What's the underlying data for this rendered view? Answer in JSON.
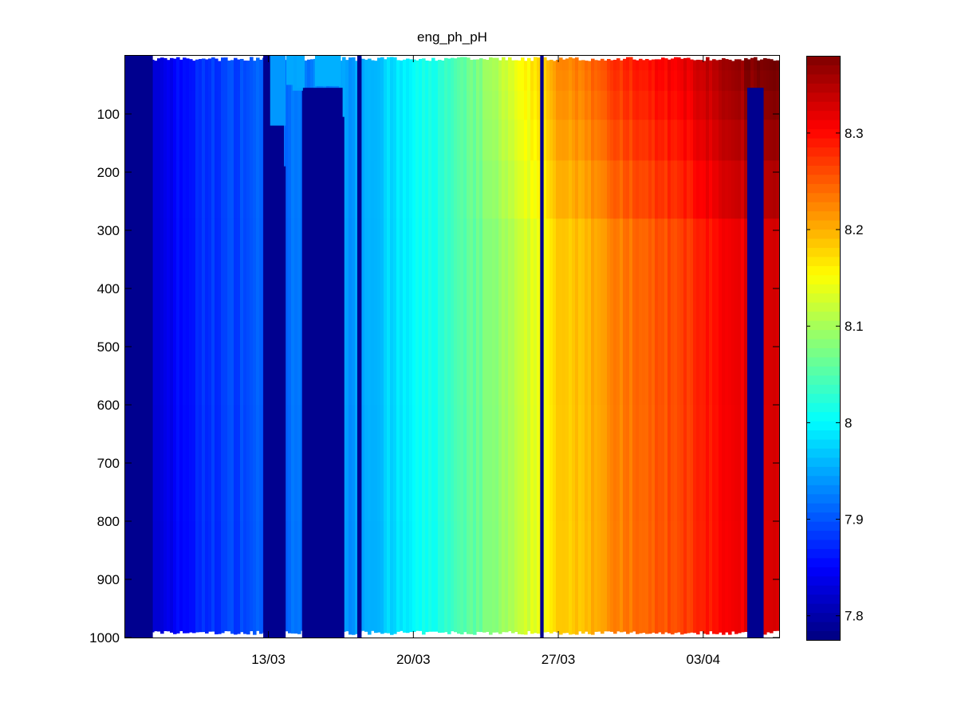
{
  "chart_data": {
    "type": "heatmap",
    "title": "eng_ph_pH",
    "xlabel": "",
    "ylabel": "",
    "x_tick_labels": [
      "13/03",
      "20/03",
      "27/03",
      "03/04"
    ],
    "x_tick_dates": [
      "2015-03-13",
      "2015-03-20",
      "2015-03-27",
      "2015-04-03"
    ],
    "xlim": [
      "2015-03-06T02:00",
      "2015-04-06T16:00"
    ],
    "y_ticks": [
      100,
      200,
      300,
      400,
      500,
      600,
      700,
      800,
      900,
      1000
    ],
    "ylim": [
      0,
      1000
    ],
    "y_reversed": true,
    "colorbar": {
      "colormap": "jet",
      "clim": [
        7.775,
        8.38
      ],
      "ticks": [
        7.8,
        7.9,
        8,
        8.1,
        8.2,
        8.3
      ],
      "tick_labels": [
        "7.8",
        "7.9",
        "8",
        "8.1",
        "8.2",
        "8.3"
      ]
    },
    "profile_trend": [
      {
        "date": "2015-03-06",
        "pH": 7.78
      },
      {
        "date": "2015-03-08",
        "pH": 7.84
      },
      {
        "date": "2015-03-10",
        "pH": 7.88
      },
      {
        "date": "2015-03-13",
        "pH": 7.91
      },
      {
        "date": "2015-03-16",
        "pH": 7.93
      },
      {
        "date": "2015-03-19",
        "pH": 7.98
      },
      {
        "date": "2015-03-22",
        "pH": 8.04
      },
      {
        "date": "2015-03-25",
        "pH": 8.11
      },
      {
        "date": "2015-03-27",
        "pH": 8.18
      },
      {
        "date": "2015-03-30",
        "pH": 8.23
      },
      {
        "date": "2015-04-02",
        "pH": 8.27
      },
      {
        "date": "2015-04-05",
        "pH": 8.32
      },
      {
        "date": "2015-04-06",
        "pH": 8.33
      }
    ],
    "surface_excess": [
      {
        "date": "2015-03-22",
        "pH": 0.0
      },
      {
        "date": "2015-03-25",
        "pH": 0.03
      },
      {
        "date": "2015-03-30",
        "pH": 0.05
      },
      {
        "date": "2015-04-03",
        "pH": 0.05
      },
      {
        "date": "2015-04-06",
        "pH": 0.06
      }
    ],
    "gaps": [
      {
        "start": "2015-03-06T02:00",
        "end": "2015-03-07T10:00",
        "top": 0,
        "bottom": 1000,
        "kind": "low"
      },
      {
        "start": "2015-03-12T18:00",
        "end": "2015-03-13T18:00",
        "top": 0,
        "bottom": 1000,
        "kind": "missing"
      },
      {
        "start": "2015-03-13T02:00",
        "end": "2015-03-13T20:00",
        "top": 0,
        "bottom": 120,
        "kind": "shallow"
      },
      {
        "start": "2015-03-13T18:00",
        "end": "2015-03-13T20:00",
        "top": 190,
        "bottom": 1000,
        "kind": "missing"
      },
      {
        "start": "2015-03-14T15:00",
        "end": "2015-03-16T14:00",
        "top": 55,
        "bottom": 1000,
        "kind": "missing"
      },
      {
        "start": "2015-03-14T04:00",
        "end": "2015-03-14T16:00",
        "top": 0,
        "bottom": 60,
        "kind": "shallow"
      },
      {
        "start": "2015-03-15T06:00",
        "end": "2015-03-16T12:00",
        "top": 0,
        "bottom": 52,
        "kind": "shallow"
      },
      {
        "start": "2015-03-16T12:00",
        "end": "2015-03-16T16:00",
        "top": 105,
        "bottom": 1000,
        "kind": "missing"
      },
      {
        "start": "2015-03-17T07:00",
        "end": "2015-03-17T12:00",
        "top": 0,
        "bottom": 1000,
        "kind": "missing"
      },
      {
        "start": "2015-03-26T03:00",
        "end": "2015-03-26T07:00",
        "top": 0,
        "bottom": 1000,
        "kind": "missing"
      },
      {
        "start": "2015-04-05T03:00",
        "end": "2015-04-05T22:00",
        "top": 55,
        "bottom": 1000,
        "kind": "missing"
      }
    ]
  }
}
